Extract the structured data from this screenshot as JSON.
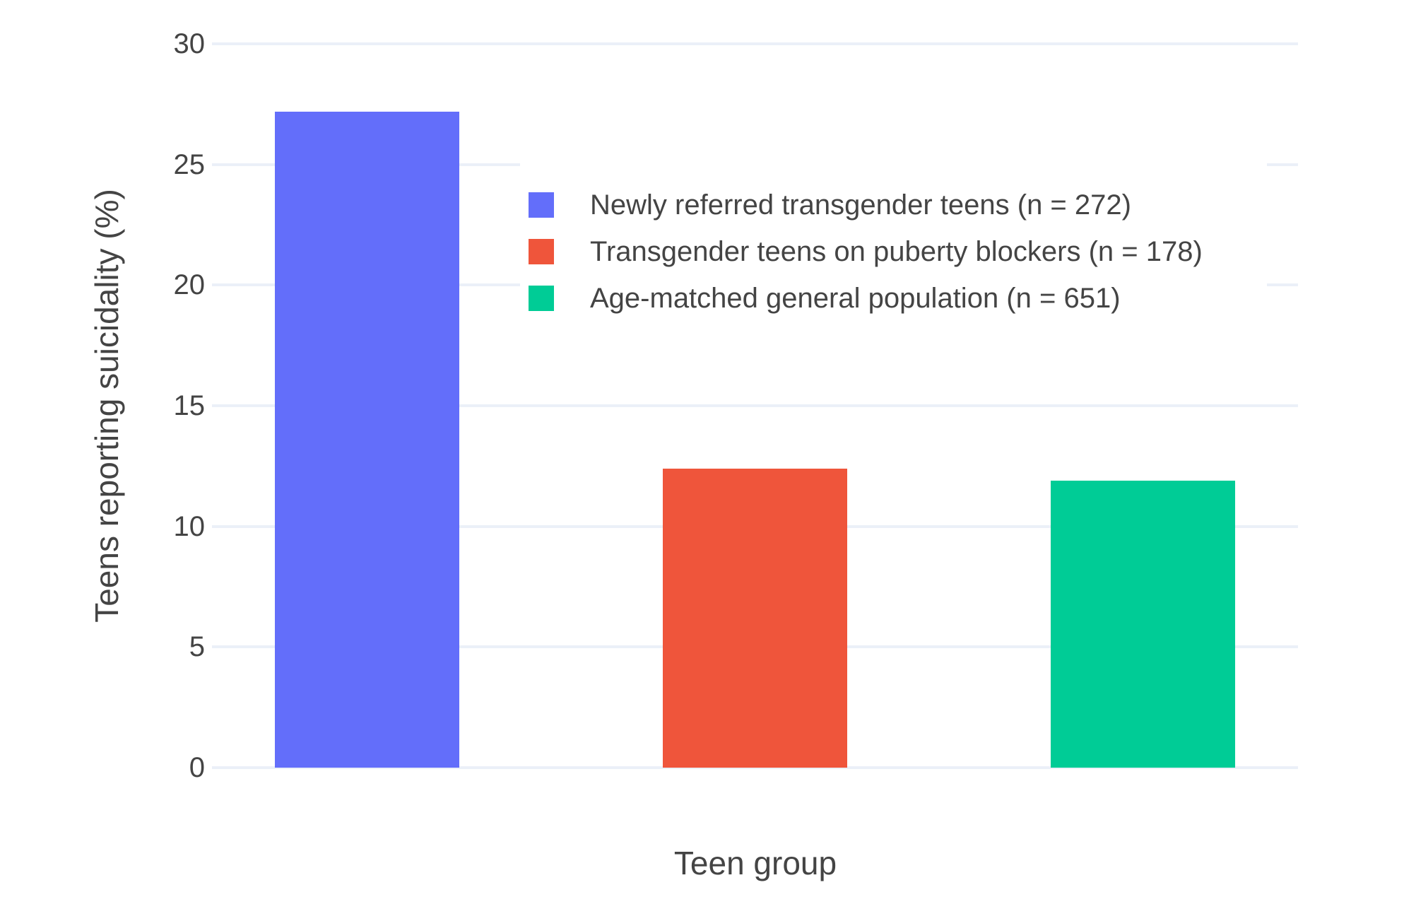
{
  "chart_data": {
    "type": "bar",
    "title": "",
    "xlabel": "Teen group",
    "ylabel": "Teens reporting suicidality (%)",
    "categories": [
      "Newly referred transgender teens (n = 272)",
      "Transgender teens on puberty blockers (n = 178)",
      "Age-matched general population (n = 651)"
    ],
    "series": [
      {
        "name": "Newly referred transgender teens (n = 272)",
        "value": 27.2,
        "color": "#636EFA"
      },
      {
        "name": "Transgender teens on puberty blockers (n = 178)",
        "value": 12.4,
        "color": "#EF553B"
      },
      {
        "name": "Age-matched general population (n = 651)",
        "value": 11.9,
        "color": "#00CC96"
      }
    ],
    "yticks": [
      0,
      5,
      10,
      15,
      20,
      25,
      30
    ],
    "ylim": [
      0,
      30
    ],
    "grid": true,
    "legend_position": "inside-top",
    "colors": {
      "grid": "#EBF0F8",
      "text": "#444444",
      "background": "#FFFFFF"
    }
  }
}
